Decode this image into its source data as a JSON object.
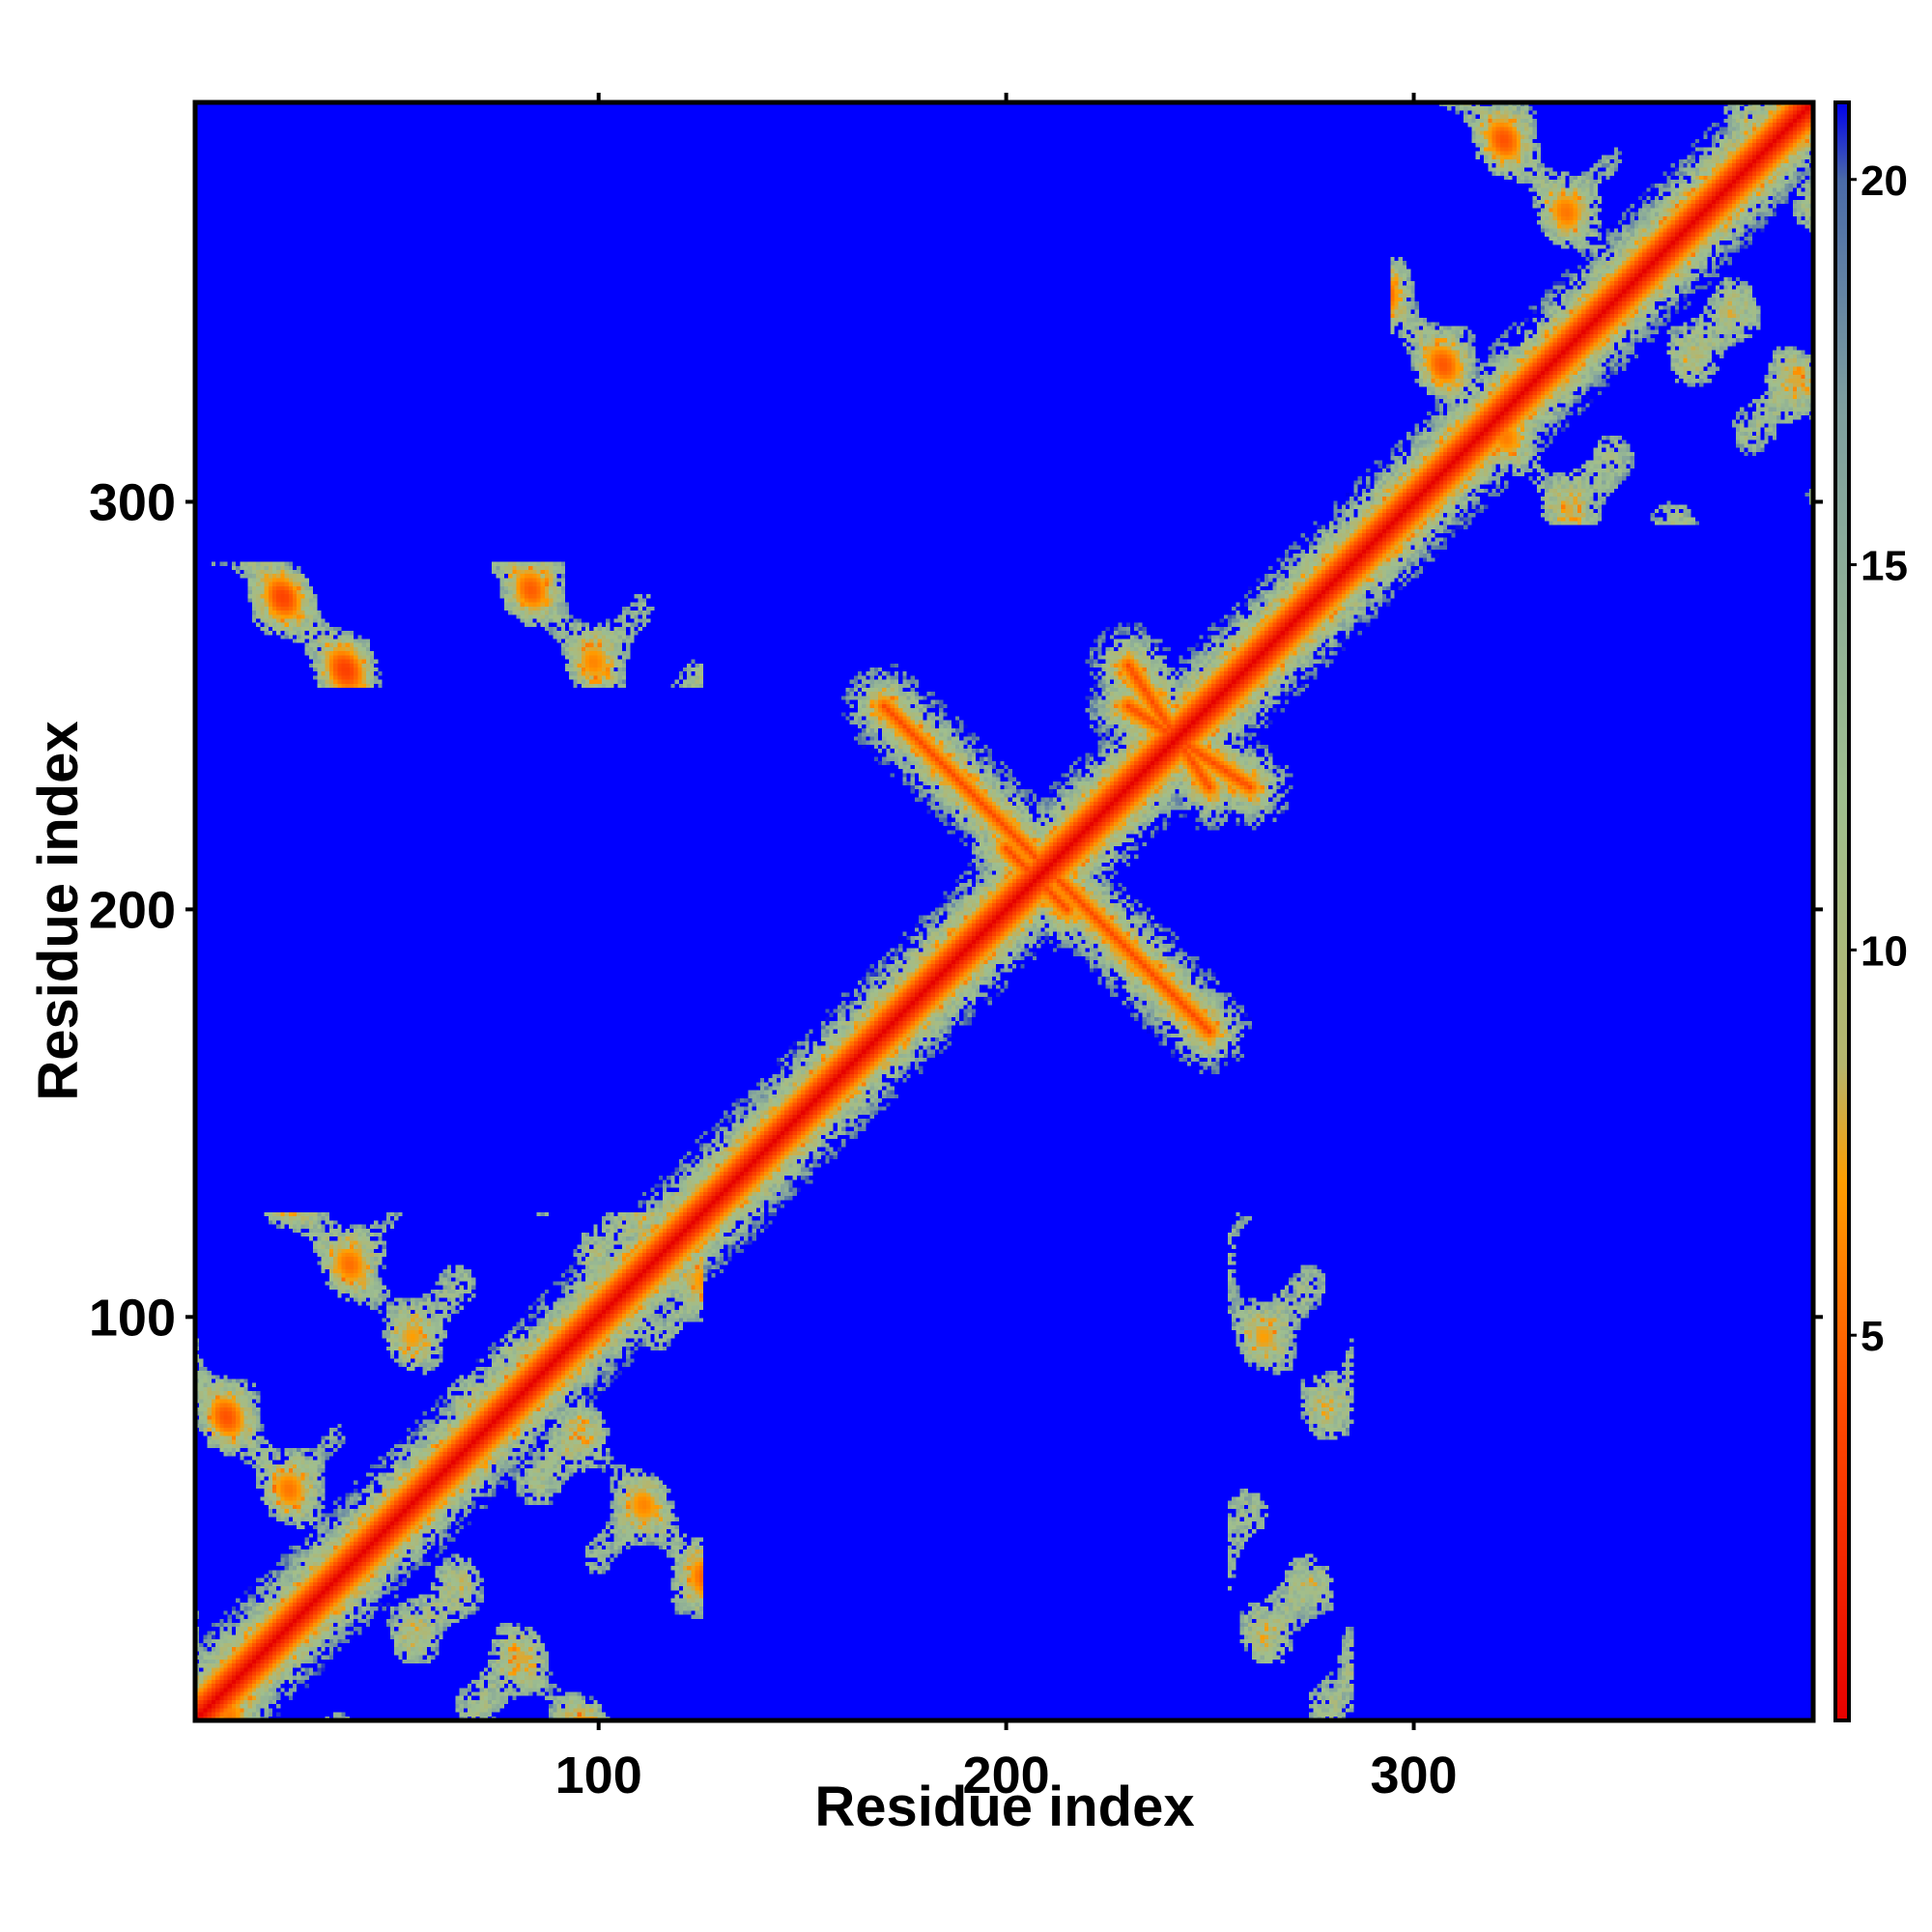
{
  "chart_data": {
    "type": "heatmap",
    "title": "",
    "xlabel": "Residue index",
    "ylabel": "Residue index",
    "n_residues": 398,
    "xlim": [
      1,
      398
    ],
    "ylim": [
      1,
      398
    ],
    "x_ticks": [
      100,
      200,
      300
    ],
    "y_ticks": [
      100,
      200,
      300
    ],
    "colorbar": {
      "ticks": [
        5,
        10,
        15,
        20
      ],
      "range": [
        0,
        21
      ],
      "stops": [
        {
          "value": 0,
          "color": "#e60000"
        },
        {
          "value": 4,
          "color": "#ff4a00"
        },
        {
          "value": 7,
          "color": "#ff9e00"
        },
        {
          "value": 8.5,
          "color": "#b5b56c"
        },
        {
          "value": 12,
          "color": "#9fbf8f"
        },
        {
          "value": 17,
          "color": "#7f9f9f"
        },
        {
          "value": 20,
          "color": "#4a6aa8"
        },
        {
          "value": 21,
          "color": "#0000ee"
        }
      ],
      "background_color": "#0000ff"
    },
    "contact_bands": [
      {
        "x": [
          1,
          398
        ],
        "y": [
          1,
          398
        ],
        "kind": "diagonal"
      },
      {
        "x": [
          210,
          250
        ],
        "y": [
          210,
          170
        ],
        "kind": "anti-diagonal"
      },
      {
        "x": [
          200,
          215
        ],
        "y": [
          215,
          200
        ],
        "kind": "anti-diagonal"
      },
      {
        "x": [
          170,
          210
        ],
        "y": [
          250,
          210
        ],
        "kind": "anti-diagonal"
      },
      {
        "x": [
          230,
          250
        ],
        "y": [
          260,
          230
        ],
        "kind": "anti-diagonal"
      },
      {
        "x": [
          295,
          398
        ],
        "y": [
          300,
          395
        ],
        "kind": "block"
      },
      {
        "x": [
          1,
          120
        ],
        "y": [
          1,
          125
        ],
        "kind": "block"
      },
      {
        "x": [
          1,
          125
        ],
        "y": [
          255,
          285
        ],
        "kind": "strip"
      },
      {
        "x": [
          255,
          285
        ],
        "y": [
          1,
          125
        ],
        "kind": "strip"
      }
    ]
  }
}
